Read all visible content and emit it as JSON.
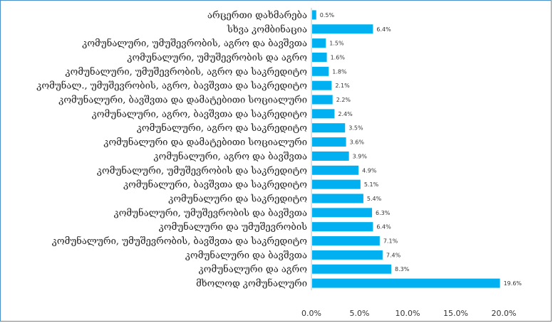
{
  "chart_data": {
    "type": "bar",
    "orientation": "horizontal",
    "categories": [
      "არცერთი დახმარება",
      "სხვა კომბინაცია",
      "კომუნალური, უმუშევრობის, აგრო და ბავშვთა",
      "კომუნალური, უმუშევრობის და აგრო",
      "კომუნალური, უმუშევრობის, აგრო და საკრედიტო",
      "კომუნალ., უმუშევრობის, აგრო, ბავშვთა და საკრედიტო",
      "კომუნალური, ბავშვთა და დამატებითი სოციალური",
      "კომუნალური, აგრო, ბავშვთა და საკრედიტო",
      "კომუნალური, აგრო და საკრედიტო",
      "კომუნალური და დამატებითი სოციალური",
      "კომუნალური, აგრო და ბავშვთა",
      "კომუნალური, უმუშევრობის და საკრედიტო",
      "კომუნალური, ბავშვთა და საკრედიტო",
      "კომუნალური და საკრედიტო",
      "კომუნალური, უმუშევრობის და ბავშვთა",
      "კომუნალური და უმუშევრობის",
      "კომუნალური, უმუშევრობის, ბავშვთა და საკრედიტო",
      "კომუნალური და ბავშვთა",
      "კომუნალური და აგრო",
      "მხოლოდ კომუნალური"
    ],
    "values": [
      0.5,
      6.4,
      1.5,
      1.6,
      1.8,
      2.1,
      2.2,
      2.4,
      3.5,
      3.6,
      3.9,
      4.9,
      5.1,
      5.4,
      6.3,
      6.4,
      7.1,
      7.4,
      8.3,
      19.6
    ],
    "value_labels": [
      "0.5%",
      "6.4%",
      "1.5%",
      "1.6%",
      "1.8%",
      "2.1%",
      "2.2%",
      "2.4%",
      "3.5%",
      "3.6%",
      "3.9%",
      "4.9%",
      "5.1%",
      "5.4%",
      "6.3%",
      "6.4%",
      "7.1%",
      "7.4%",
      "8.3%",
      "19.6%"
    ],
    "xlim": [
      0,
      20
    ],
    "x_ticks": [
      "0.0%",
      "5.0%",
      "10.0%",
      "15.0%",
      "20.0%"
    ],
    "grid": false,
    "bar_color": "#00b0f0",
    "axis_color": "#bfbfbf",
    "border_color": "#4a90c8"
  }
}
